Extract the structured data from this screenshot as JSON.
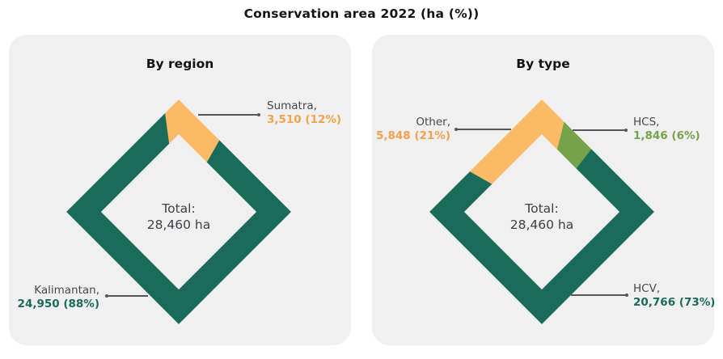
{
  "title": "Conservation area 2022 (ha (%))",
  "colors": {
    "teal": "#1A6B5A",
    "orange_segment": "#FBBA66",
    "orange_text": "#F5A14C",
    "olive": "#76A24A",
    "label_gray": "#47484D",
    "center_text": "#3E4045",
    "leader_line": "#55565A",
    "panel_background": "#F0F0F1",
    "title_text": "#141415"
  },
  "chart_data": [
    {
      "type": "donut-diamond",
      "heading": "By region",
      "center": {
        "label": "Total:",
        "value": "28,460 ha"
      },
      "total": 28460,
      "unit": "ha",
      "start_fraction": 0.09,
      "segments": [
        {
          "name": "Kalimantan",
          "value": 24950,
          "pct": 88,
          "color": "#1A6B5A"
        },
        {
          "name": "Sumatra",
          "value": 3510,
          "pct": 12,
          "color": "#FBBA66"
        }
      ],
      "callouts": [
        {
          "name": "Sumatra,",
          "value": "3,510 (12%)",
          "color": "#F5A14C"
        },
        {
          "name": "Kalimantan,",
          "value": "24,950 (88%)",
          "color": "#1A6B5A"
        }
      ]
    },
    {
      "type": "donut-diamond",
      "heading": "By type",
      "center": {
        "label": "Total:",
        "value": "28,460 ha"
      },
      "total": 28460,
      "unit": "ha",
      "start_fraction": 0.11,
      "segments": [
        {
          "name": "HCV",
          "value": 20766,
          "pct": 73,
          "color": "#1A6B5A"
        },
        {
          "name": "Other",
          "value": 5848,
          "pct": 21,
          "color": "#FBBA66"
        },
        {
          "name": "HCS",
          "value": 1846,
          "pct": 6,
          "color": "#76A24A"
        }
      ],
      "callouts": [
        {
          "name": "Other,",
          "value": "5,848 (21%)",
          "color": "#F5A14C"
        },
        {
          "name": "HCS,",
          "value": "1,846 (6%)",
          "color": "#76A24A"
        },
        {
          "name": "HCV,",
          "value": "20,766 (73%)",
          "color": "#1A6B5A"
        }
      ]
    }
  ]
}
